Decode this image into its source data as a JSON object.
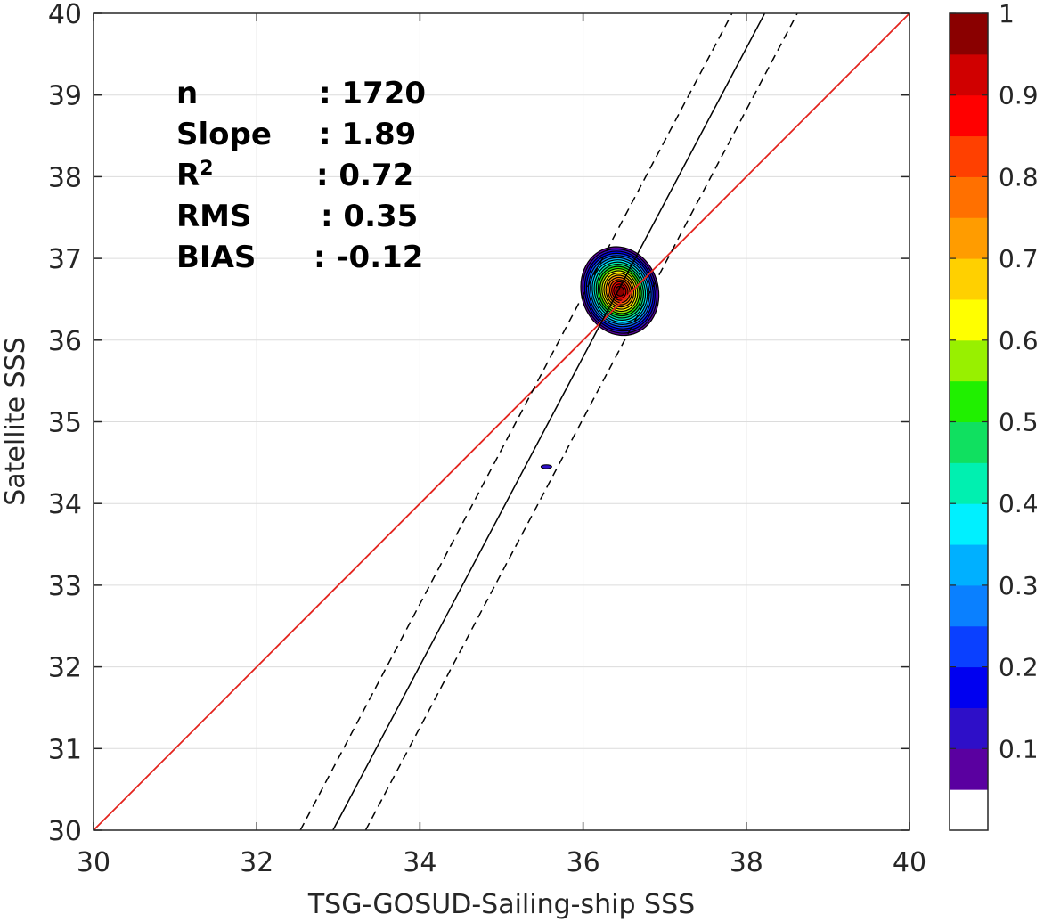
{
  "chart_data": {
    "type": "scatter",
    "subtype": "density-contour",
    "xlabel": "TSG-GOSUD-Sailing-ship SSS",
    "ylabel": "Satellite SSS",
    "xlim": [
      30,
      40
    ],
    "ylim": [
      30,
      40
    ],
    "xticks": [
      "30",
      "32",
      "34",
      "36",
      "38",
      "40"
    ],
    "yticks": [
      "30",
      "31",
      "32",
      "33",
      "34",
      "35",
      "36",
      "37",
      "38",
      "39",
      "40"
    ],
    "grid": true,
    "stats": [
      {
        "label": "n",
        "value": ": 1720"
      },
      {
        "label": "Slope",
        "value": ": 1.89"
      },
      {
        "label": "R",
        "sup": "2",
        "value": ": 0.72"
      },
      {
        "label": "RMS",
        "value": ": 0.35"
      },
      {
        "label": "BIAS",
        "value": ": -0.12"
      }
    ],
    "one_to_one_line": {
      "x": [
        30,
        40
      ],
      "y": [
        30,
        40
      ],
      "color": "#e3231d"
    },
    "regression_line": {
      "slope": 1.89,
      "x0": 36.4,
      "y0": 36.55,
      "color": "#000000"
    },
    "regression_bounds": {
      "offset_x": 0.4,
      "style": "dashed"
    },
    "density_peak": {
      "x": 36.45,
      "y": 36.6
    },
    "density_extent": {
      "x": [
        35.98,
        36.92
      ],
      "y": [
        36.05,
        37.15
      ]
    },
    "outlier_blob": {
      "x": 35.55,
      "y": 34.45
    },
    "colorbar": {
      "ticks": [
        "1",
        "0.9",
        "0.8",
        "0.7",
        "0.6",
        "0.5",
        "0.4",
        "0.3",
        "0.2",
        "0.1"
      ],
      "tick_values": [
        1.0,
        0.9,
        0.8,
        0.7,
        0.6,
        0.5,
        0.4,
        0.3,
        0.2,
        0.1
      ],
      "colors": [
        "#ffffff",
        "#5a00a0",
        "#2e0fc8",
        "#0000f0",
        "#0a40ff",
        "#0a80ff",
        "#00b0ff",
        "#00f0ff",
        "#00f0b0",
        "#10e060",
        "#20f000",
        "#98f000",
        "#ffff00",
        "#ffd000",
        "#ff9c00",
        "#ff7000",
        "#ff4000",
        "#ff0000",
        "#d00000",
        "#8a0000"
      ]
    }
  }
}
